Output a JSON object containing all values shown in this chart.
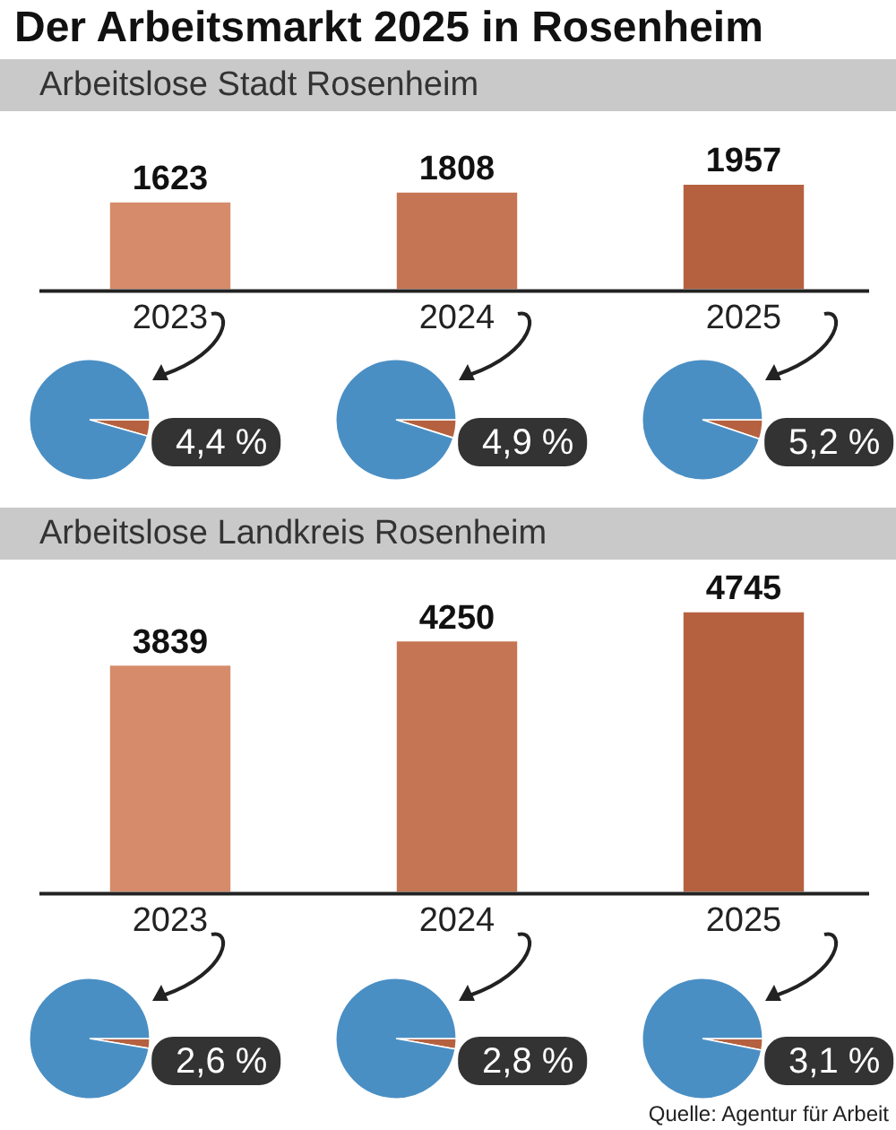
{
  "chart_data": [
    {
      "type": "bar",
      "title": "Der Arbeitsmarkt 2025 in Rosenheim",
      "subtitle": "Arbeitslose Stadt Rosenheim",
      "categories": [
        "2023",
        "2024",
        "2025"
      ],
      "values": [
        1623,
        1808,
        1957
      ],
      "colors": [
        "#d68b6b",
        "#c57553",
        "#b5613f"
      ],
      "data_labels": true
    },
    {
      "type": "pie",
      "categories": [
        null,
        null
      ],
      "values": [
        4.4,
        95.6
      ],
      "colors": [
        "#b5613f",
        "#4a8fc4"
      ],
      "value_labels": [
        "4,4 %",
        null
      ]
    },
    {
      "type": "pie",
      "categories": [
        null,
        null
      ],
      "values": [
        4.9,
        95.1
      ],
      "colors": [
        "#b5613f",
        "#4a8fc4"
      ],
      "value_labels": [
        "4,9 %",
        null
      ]
    },
    {
      "type": "pie",
      "categories": [
        null,
        null
      ],
      "values": [
        5.2,
        94.8
      ],
      "colors": [
        "#b5613f",
        "#4a8fc4"
      ],
      "value_labels": [
        "5,2 %",
        null
      ]
    },
    {
      "type": "bar",
      "subtitle": "Arbeitslose Landkreis Rosenheim",
      "categories": [
        "2023",
        "2024",
        "2025"
      ],
      "values": [
        3839,
        4250,
        4745
      ],
      "colors": [
        "#d68b6b",
        "#c57553",
        "#b5613f"
      ],
      "data_labels": true,
      "annotations": [
        "Quelle: Agentur für Arbeit"
      ]
    },
    {
      "type": "pie",
      "categories": [
        null,
        null
      ],
      "values": [
        2.6,
        97.4
      ],
      "colors": [
        "#b5613f",
        "#4a8fc4"
      ],
      "value_labels": [
        "2,6 %",
        null
      ]
    },
    {
      "type": "pie",
      "categories": [
        null,
        null
      ],
      "values": [
        2.8,
        97.2
      ],
      "colors": [
        "#b5613f",
        "#4a8fc4"
      ],
      "value_labels": [
        "2,8 %",
        null
      ]
    },
    {
      "type": "pie",
      "categories": [
        null,
        null
      ],
      "values": [
        3.1,
        96.9
      ],
      "colors": [
        "#b5613f",
        "#4a8fc4"
      ],
      "value_labels": [
        "3,1 %",
        null
      ]
    }
  ]
}
